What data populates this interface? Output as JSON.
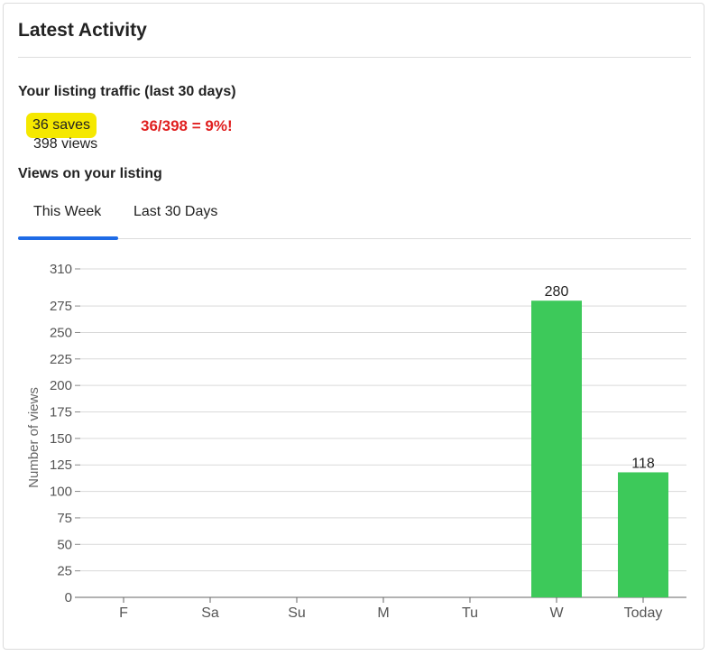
{
  "card": {
    "title": "Latest Activity"
  },
  "traffic": {
    "heading": "Your listing traffic (last 30 days)",
    "saves_label": "36 saves",
    "views_label": "398 views",
    "ratio_note": "36/398 = 9%!",
    "highlight_color": "#f5e800",
    "note_color": "#e02020"
  },
  "views_section": {
    "heading": "Views on your listing"
  },
  "tabs": [
    {
      "label": "This Week",
      "selected": true
    },
    {
      "label": "Last 30 Days",
      "selected": false
    }
  ],
  "accent_color": "#1e6be6",
  "chart_data": {
    "type": "bar",
    "title": "",
    "xlabel": "",
    "ylabel": "Number of views",
    "categories": [
      "F",
      "Sa",
      "Su",
      "M",
      "Tu",
      "W",
      "Today"
    ],
    "series": [
      {
        "values": [
          0,
          0,
          0,
          0,
          0,
          280,
          118
        ]
      }
    ],
    "data_labels": [
      "",
      "",
      "",
      "",
      "",
      "280",
      "118"
    ],
    "ylim": [
      0,
      310
    ],
    "yticks": [
      0,
      25,
      50,
      75,
      100,
      125,
      150,
      175,
      200,
      225,
      250,
      275,
      310
    ],
    "grid": true,
    "bar_color": "#3dc95a",
    "legend": "none"
  }
}
